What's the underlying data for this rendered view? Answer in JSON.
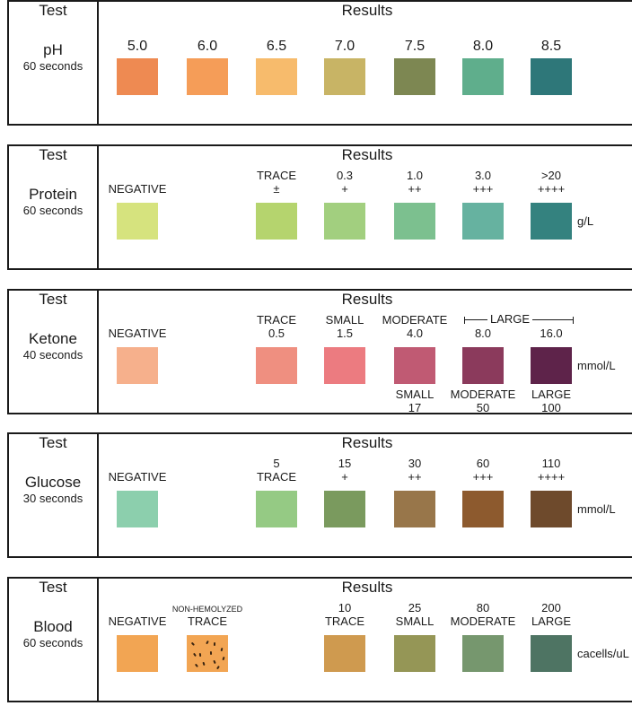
{
  "header": {
    "test": "Test",
    "results": "Results"
  },
  "panels": [
    {
      "name": "pH",
      "time": "60 seconds",
      "unit": "",
      "swatches": [
        {
          "color": "#ee8a52",
          "top": [
            "5.0"
          ],
          "bottom": []
        },
        {
          "color": "#f59d58",
          "top": [
            "6.0"
          ],
          "bottom": []
        },
        {
          "color": "#f7bb6c",
          "top": [
            "6.5"
          ],
          "bottom": []
        },
        {
          "color": "#c8b465",
          "top": [
            "7.0"
          ],
          "bottom": []
        },
        {
          "color": "#7d8752",
          "top": [
            "7.5"
          ],
          "bottom": []
        },
        {
          "color": "#5fae8c",
          "top": [
            "8.0"
          ],
          "bottom": []
        },
        {
          "color": "#2e7779",
          "top": [
            "8.5"
          ],
          "bottom": []
        }
      ]
    },
    {
      "name": "Protein",
      "time": "60 seconds",
      "unit": "g/L",
      "swatches": [
        {
          "color": "#d6e37e",
          "top": [
            "NEGATIVE"
          ],
          "bottom": []
        },
        {
          "color": "#b5d46e",
          "top": [
            "TRACE",
            "±"
          ],
          "bottom": []
        },
        {
          "color": "#a2cf7f",
          "top": [
            "0.3",
            "+"
          ],
          "bottom": []
        },
        {
          "color": "#7cc08f",
          "top": [
            "1.0",
            "++"
          ],
          "bottom": []
        },
        {
          "color": "#66b2a0",
          "top": [
            "3.0",
            "+++"
          ],
          "bottom": []
        },
        {
          "color": "#34827f",
          "top": [
            ">20",
            "++++"
          ],
          "bottom": []
        }
      ]
    },
    {
      "name": "Ketone",
      "time": "40 seconds",
      "unit": "mmol/L",
      "bracket": "LARGE",
      "swatches": [
        {
          "color": "#f6b08c",
          "top": [
            "NEGATIVE"
          ],
          "bottom": []
        },
        {
          "color": "#ef8f80",
          "top": [
            "TRACE",
            "0.5"
          ],
          "bottom": []
        },
        {
          "color": "#ec7b80",
          "top": [
            "SMALL",
            "1.5"
          ],
          "bottom": []
        },
        {
          "color": "#c05a73",
          "top": [
            "MODERATE",
            "4.0"
          ],
          "bottom": [
            "SMALL",
            "17"
          ]
        },
        {
          "color": "#8b3a5c",
          "top": [
            "8.0"
          ],
          "bottom": [
            "MODERATE",
            "50"
          ]
        },
        {
          "color": "#5e234a",
          "top": [
            "16.0"
          ],
          "bottom": [
            "LARGE",
            "100"
          ]
        }
      ]
    },
    {
      "name": "Glucose",
      "time": "30 seconds",
      "unit": "mmol/L",
      "swatches": [
        {
          "color": "#8ccfad",
          "top": [
            "NEGATIVE"
          ],
          "bottom": []
        },
        {
          "color": "#95ca84",
          "top": [
            "5",
            "TRACE"
          ],
          "bottom": []
        },
        {
          "color": "#7a9a5e",
          "top": [
            "15",
            "+"
          ],
          "bottom": []
        },
        {
          "color": "#98764a",
          "top": [
            "30",
            "++"
          ],
          "bottom": []
        },
        {
          "color": "#8d5a2e",
          "top": [
            "60",
            "+++"
          ],
          "bottom": []
        },
        {
          "color": "#6e4a2c",
          "top": [
            "110",
            "++++"
          ],
          "bottom": []
        }
      ]
    },
    {
      "name": "Blood",
      "time": "60 seconds",
      "unit": "cacells/uL",
      "swatches": [
        {
          "color": "#f2a553",
          "top": [
            "NEGATIVE"
          ],
          "bottom": []
        },
        {
          "color": "#f2a553",
          "top": [
            "NON-HEMOLYZED",
            "TRACE"
          ],
          "bottom": [],
          "speckled": true
        },
        {
          "color": "#cf9a4f",
          "top": [
            "10",
            "TRACE"
          ],
          "bottom": []
        },
        {
          "color": "#959656",
          "top": [
            "25",
            "SMALL"
          ],
          "bottom": []
        },
        {
          "color": "#76976e",
          "top": [
            "80",
            "MODERATE"
          ],
          "bottom": []
        },
        {
          "color": "#4e7463",
          "top": [
            "200",
            "LARGE"
          ],
          "bottom": []
        }
      ]
    }
  ]
}
